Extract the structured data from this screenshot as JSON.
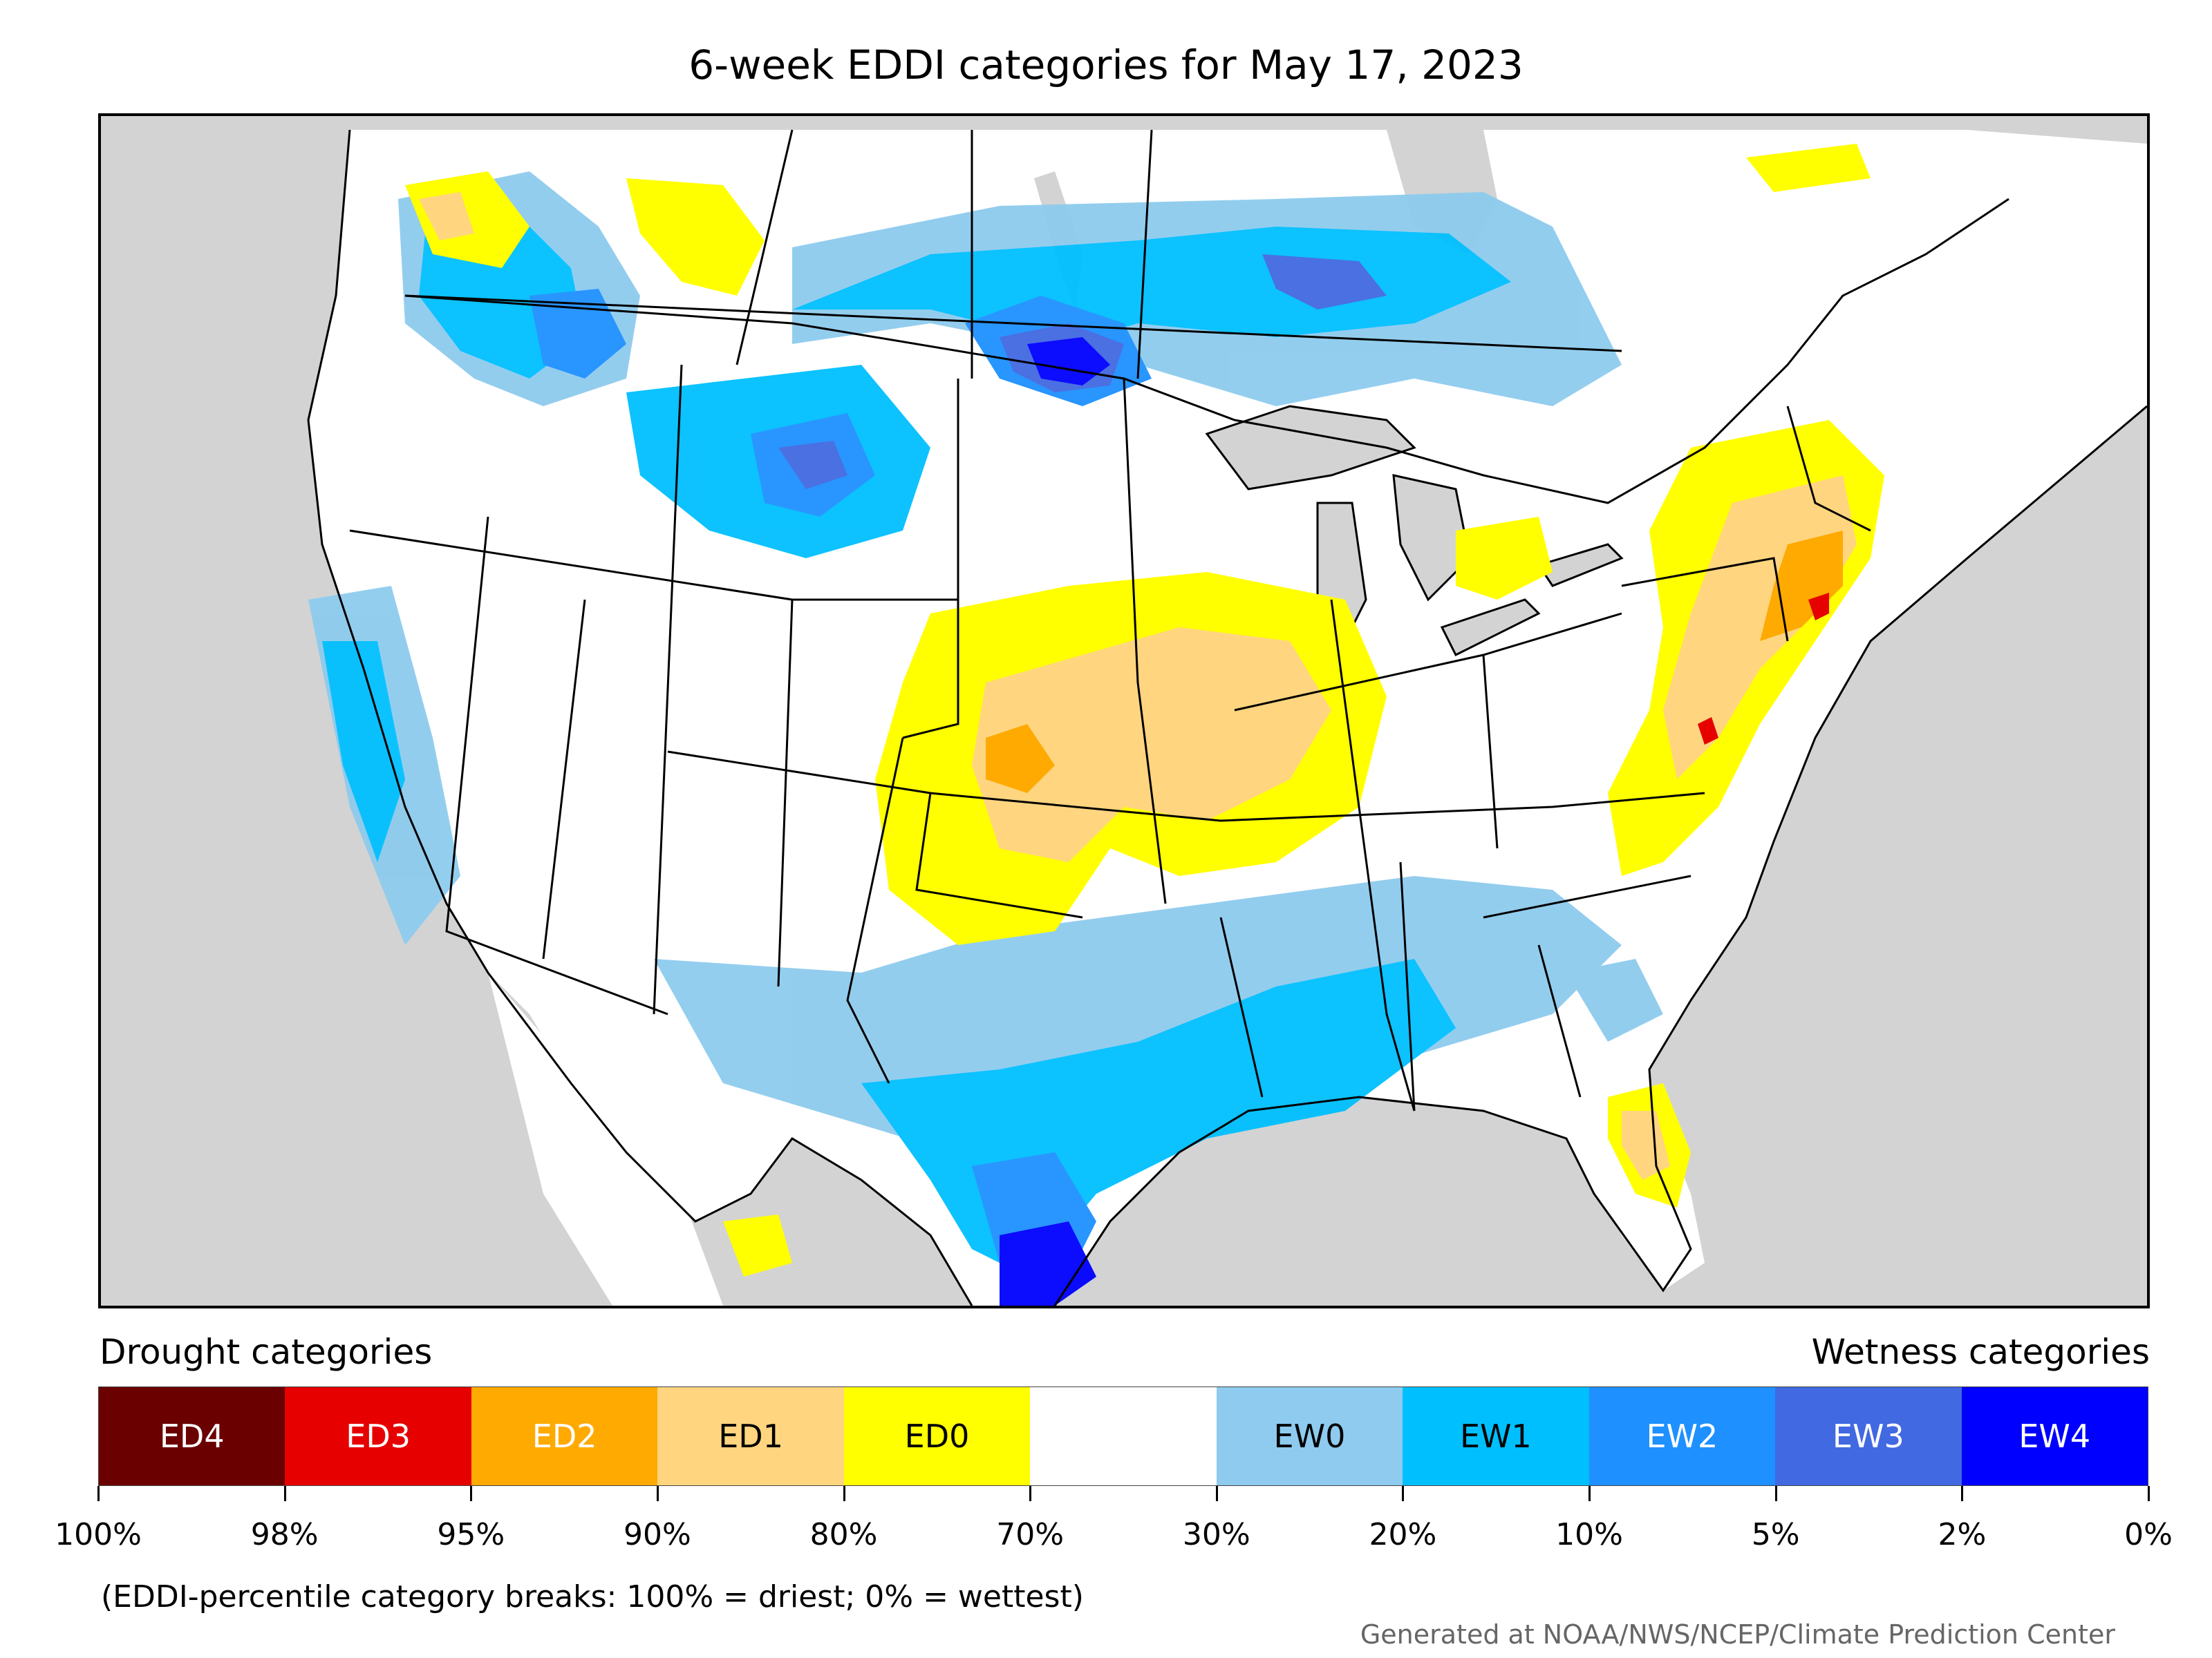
{
  "title": "6-week EDDI categories for May 17, 2023",
  "legend": {
    "drought_heading": "Drought categories",
    "wetness_heading": "Wetness categories",
    "categories": [
      {
        "label": "ED4",
        "color": "#6b0000",
        "text_color": "#ffffff"
      },
      {
        "label": "ED3",
        "color": "#e60000",
        "text_color": "#ffffff"
      },
      {
        "label": "ED2",
        "color": "#ffaa00",
        "text_color": "#ffffff"
      },
      {
        "label": "ED1",
        "color": "#ffd580",
        "text_color": "#000000"
      },
      {
        "label": "ED0",
        "color": "#ffff00",
        "text_color": "#000000"
      },
      {
        "label": "",
        "color": "#ffffff",
        "text_color": "#000000"
      },
      {
        "label": "EW0",
        "color": "#8ecbee",
        "text_color": "#000000"
      },
      {
        "label": "EW1",
        "color": "#00bfff",
        "text_color": "#000000"
      },
      {
        "label": "EW2",
        "color": "#1e90ff",
        "text_color": "#ffffff"
      },
      {
        "label": "EW3",
        "color": "#4169e1",
        "text_color": "#ffffff"
      },
      {
        "label": "EW4",
        "color": "#0000ff",
        "text_color": "#ffffff"
      }
    ],
    "breaks": [
      "100%",
      "98%",
      "95%",
      "90%",
      "80%",
      "70%",
      "30%",
      "20%",
      "10%",
      "5%",
      "2%",
      "0%"
    ]
  },
  "note": "(EDDI-percentile category breaks: 100% = driest; 0% = wettest)",
  "credit": "Generated at NOAA/NWS/NCEP/Climate Prediction Center"
}
